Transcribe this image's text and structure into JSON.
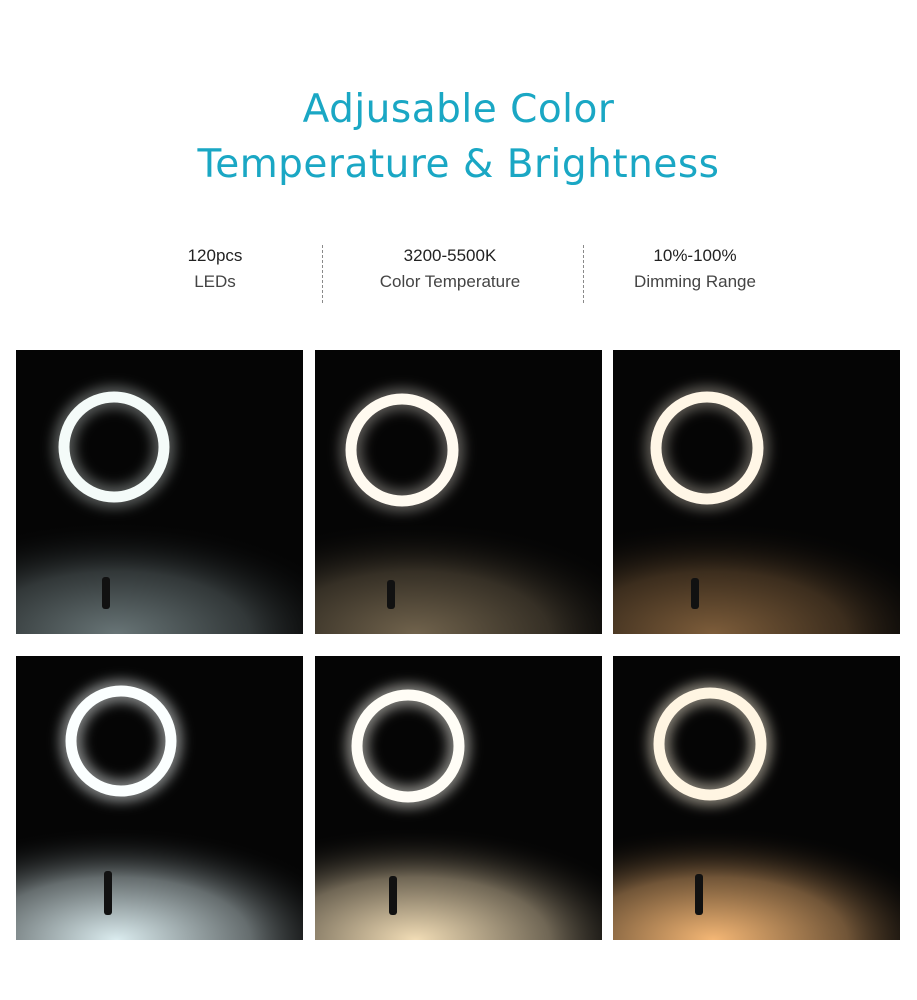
{
  "title": {
    "line1": "Adjusable Color",
    "line2": "Temperature & Brightness",
    "color": "#1aa7c4"
  },
  "specs": [
    {
      "value": "120pcs",
      "label": "LEDs"
    },
    {
      "value": "3200-5500K",
      "label": "Color Temperature"
    },
    {
      "value": "10%-100%",
      "label": "Dimming Range"
    }
  ],
  "panels": [
    {
      "name": "cool-dim",
      "floor_color": "#b9d0d3",
      "ring_color": "#f4fbf9",
      "glow": 0.55
    },
    {
      "name": "neutral-dim",
      "floor_color": "#c9b087",
      "ring_color": "#fffaf0",
      "glow": 0.55
    },
    {
      "name": "warm-dim",
      "floor_color": "#e0a566",
      "ring_color": "#fff6e6",
      "glow": 0.55
    },
    {
      "name": "cool-bright",
      "floor_color": "#dbecef",
      "ring_color": "#fbffff",
      "glow": 1.0
    },
    {
      "name": "neutral-bright",
      "floor_color": "#f2ddb6",
      "ring_color": "#fffdf6",
      "glow": 1.0
    },
    {
      "name": "warm-bright",
      "floor_color": "#f5b775",
      "ring_color": "#fff5e2",
      "glow": 1.0
    }
  ]
}
